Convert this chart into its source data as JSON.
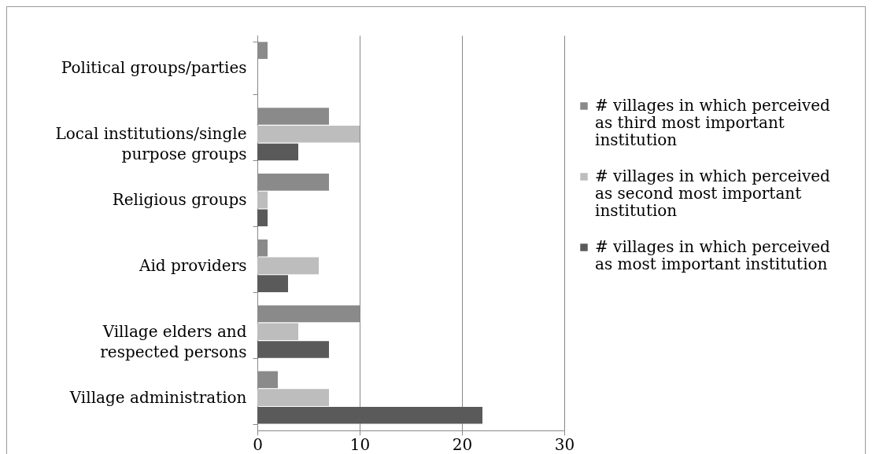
{
  "chart_data": {
    "type": "bar",
    "orientation": "horizontal",
    "categories": [
      "Political groups/parties",
      "Local institutions/single purpose groups",
      "Religious groups",
      "Aid providers",
      "Village elders and respected persons",
      "Village administration"
    ],
    "series": [
      {
        "name": "# villages in which perceived as third most important institution",
        "color": "#8a8a8a",
        "values": [
          1,
          7,
          7,
          1,
          10,
          2
        ]
      },
      {
        "name": "# villages in which perceived as second most important institution",
        "color": "#bdbdbd",
        "values": [
          0,
          10,
          1,
          6,
          4,
          7
        ]
      },
      {
        "name": "# villages in which perceived as most important institution",
        "color": "#5a5a5a",
        "values": [
          0,
          4,
          1,
          3,
          7,
          22
        ]
      }
    ],
    "xlim": [
      0,
      30
    ],
    "xticks": [
      0,
      10,
      20,
      30
    ],
    "grid": "x",
    "legend": "right"
  }
}
